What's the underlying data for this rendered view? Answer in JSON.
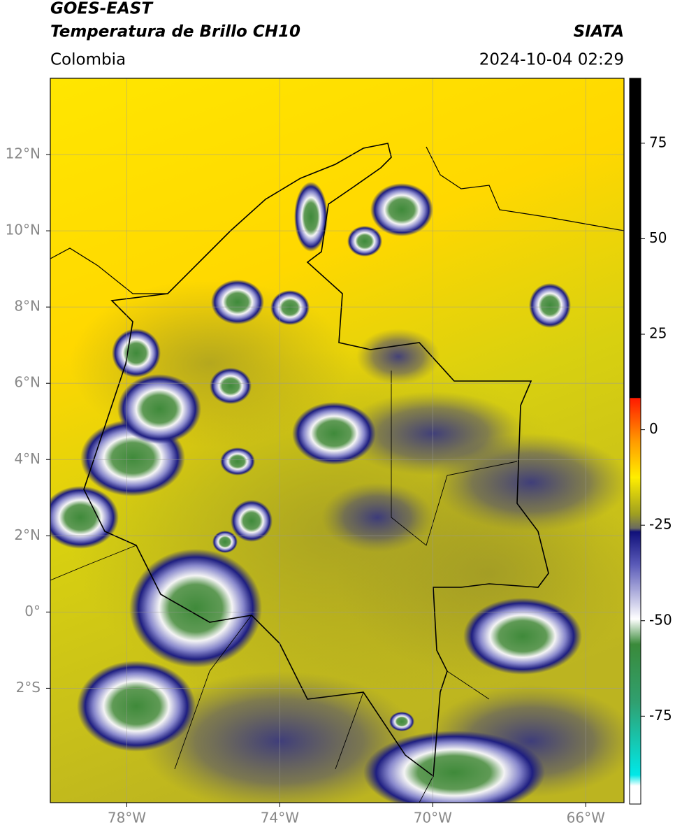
{
  "header": {
    "title": "GOES-EAST",
    "subtitle": "Temperatura de Brillo CH10",
    "region": "Colombia",
    "source": "SIATA",
    "timestamp": "2024-10-04 02:29"
  },
  "map": {
    "lon_lim": [
      -80,
      -65
    ],
    "lat_lim": [
      -5,
      14
    ],
    "x_ticks": [
      {
        "value": -78,
        "label": "78°W"
      },
      {
        "value": -74,
        "label": "74°W"
      },
      {
        "value": -70,
        "label": "70°W"
      },
      {
        "value": -66,
        "label": "66°W"
      }
    ],
    "y_ticks": [
      {
        "value": 12,
        "label": "12°N"
      },
      {
        "value": 10,
        "label": "10°N"
      },
      {
        "value": 8,
        "label": "8°N"
      },
      {
        "value": 6,
        "label": "6°N"
      },
      {
        "value": 4,
        "label": "4°N"
      },
      {
        "value": 2,
        "label": "2°N"
      },
      {
        "value": 0,
        "label": "0°"
      },
      {
        "value": -2,
        "label": "2°S"
      }
    ]
  },
  "colorbar": {
    "lim": [
      -98,
      92
    ],
    "ticks": [
      75,
      50,
      25,
      0,
      -25,
      -50,
      -75
    ]
  }
}
